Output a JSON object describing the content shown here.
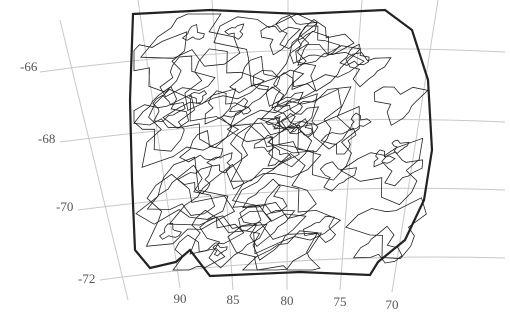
{
  "lat_labels": [
    "-66",
    "-68",
    "-70",
    "-72"
  ],
  "lon_labels": [
    "90",
    "85",
    "80",
    "75",
    "70"
  ]
}
